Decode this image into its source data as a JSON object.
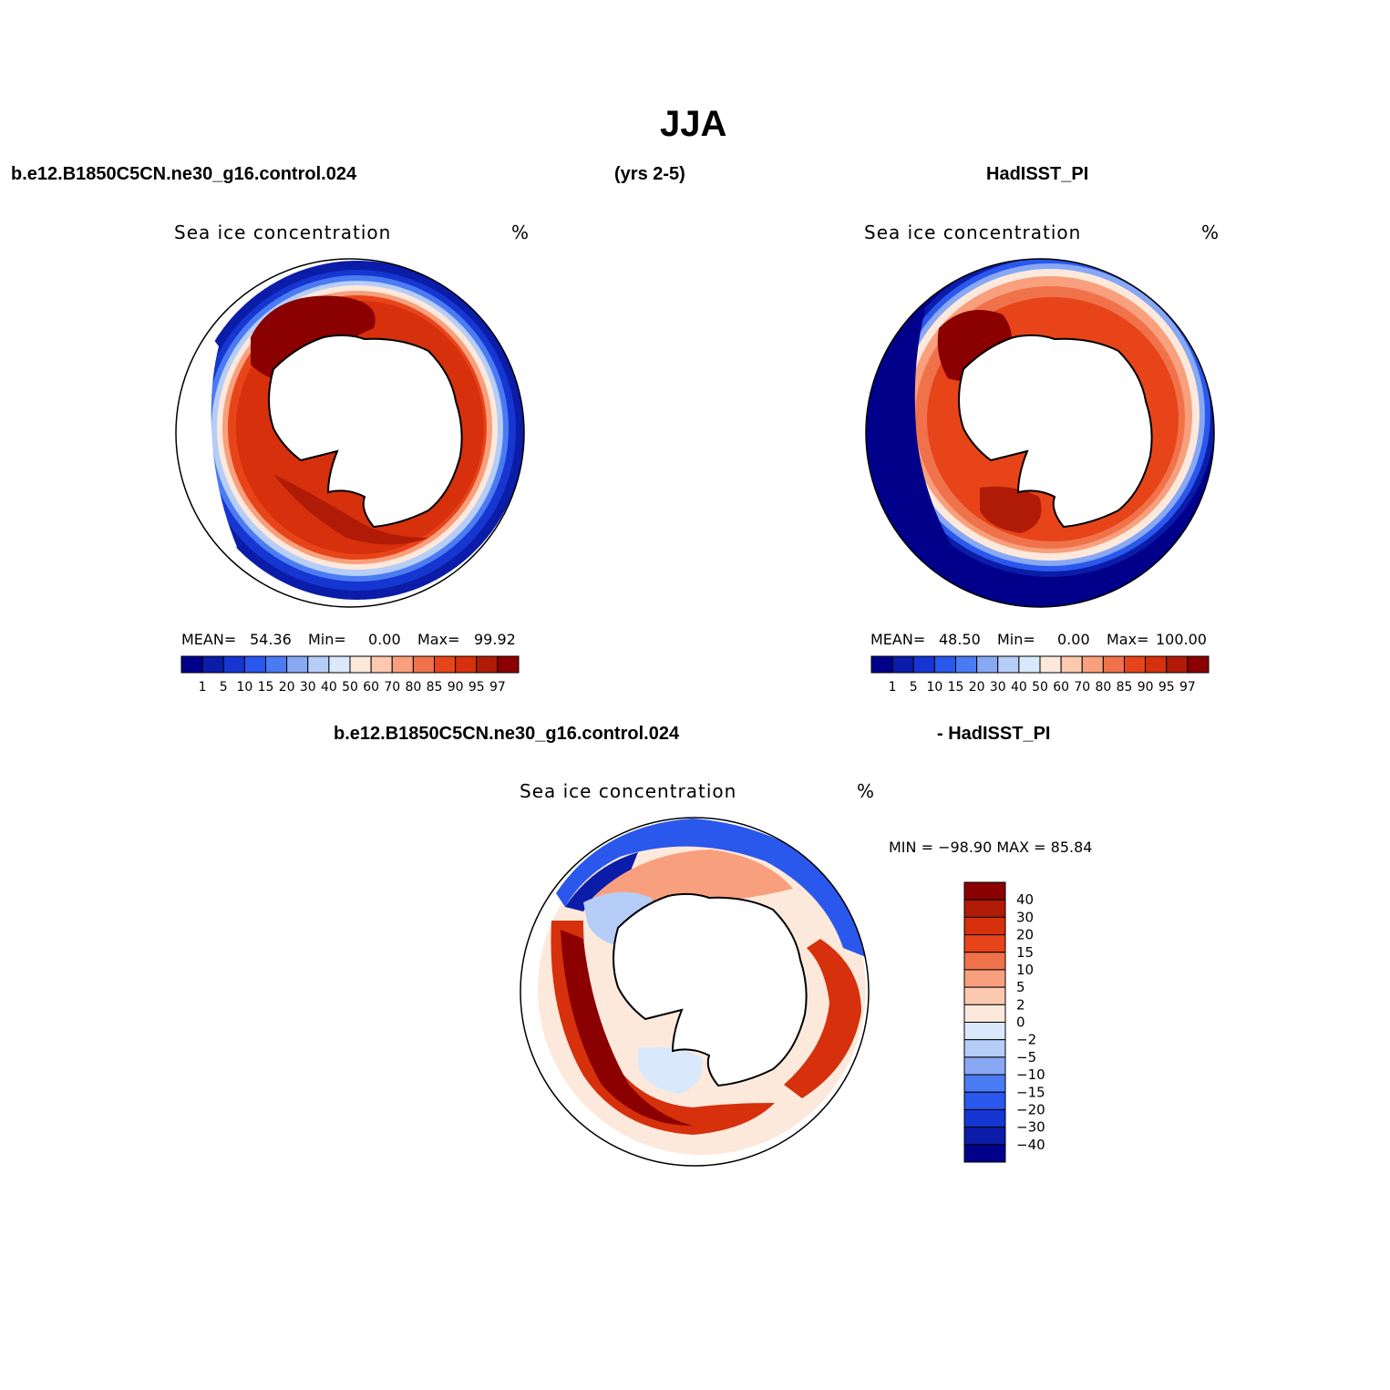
{
  "figure": {
    "title": "JJA",
    "header_left": "b.e12.B1850C5CN.ne30_g16.control.024",
    "header_center": "(yrs 2-5)",
    "header_right": "HadISST_PI",
    "diff_header_left": "b.e12.B1850C5CN.ne30_g16.control.024",
    "diff_header_right": "- HadISST_PI"
  },
  "panels": [
    {
      "variable": "Sea ice concentration",
      "units": "%",
      "stats": {
        "mean_label": "MEAN=",
        "mean": "54.36",
        "min_label": "Min=",
        "min": "0.00",
        "max_label": "Max=",
        "max": "99.92"
      }
    },
    {
      "variable": "Sea ice concentration",
      "units": "%",
      "stats": {
        "mean_label": "MEAN=",
        "mean": "48.50",
        "min_label": "Min=",
        "min": "0.00",
        "max_label": "Max=",
        "max": "100.00"
      }
    },
    {
      "variable": "Sea ice concentration",
      "units": "%",
      "stats_text": "MIN = −98.90 MAX =   85.84"
    }
  ],
  "colorbars": {
    "abs_levels": [
      "1",
      "5",
      "10",
      "15",
      "20",
      "30",
      "40",
      "50",
      "60",
      "70",
      "80",
      "85",
      "90",
      "95",
      "97"
    ],
    "abs_colors": [
      "#00008b",
      "#0b1ca8",
      "#1536d0",
      "#2a57ec",
      "#4a7bf2",
      "#88a8f4",
      "#b6cdf8",
      "#d9e8fb",
      "#fde9dc",
      "#fbc9af",
      "#f8a07d",
      "#f0724b",
      "#e84419",
      "#d6300c",
      "#b01b07",
      "#8b0000"
    ],
    "diff_levels": [
      "40",
      "30",
      "20",
      "15",
      "10",
      "5",
      "2",
      "0",
      "−2",
      "−5",
      "−10",
      "−15",
      "−20",
      "−30",
      "−40"
    ],
    "diff_colors": [
      "#8b0000",
      "#b01b07",
      "#d6300c",
      "#e84419",
      "#f0724b",
      "#f8a07d",
      "#fbc9af",
      "#fde9dc",
      "#d9e8fb",
      "#b6cdf8",
      "#88a8f4",
      "#4a7bf2",
      "#2a57ec",
      "#1536d0",
      "#0b1ca8",
      "#00008b"
    ]
  }
}
